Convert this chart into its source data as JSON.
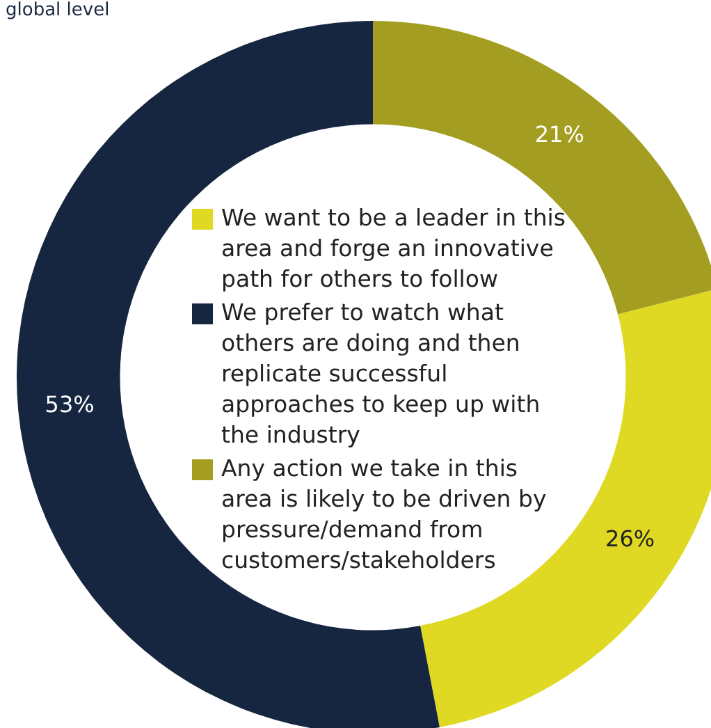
{
  "chart_data": {
    "type": "donut",
    "title": "global level",
    "categories": [
      "We want to be a leader in this area and forge an innovative path for others to follow",
      "We prefer to watch what others are doing and then replicate successful approaches to keep up with the industry",
      "Any action we take in this area is likely to be driven by pressure/demand from customers/stakeholders"
    ],
    "values": [
      26,
      53,
      21
    ],
    "colors": [
      "#e0d924",
      "#172640",
      "#a39e22"
    ],
    "value_labels": [
      "26%",
      "53%",
      "21%"
    ],
    "legend": "center"
  }
}
